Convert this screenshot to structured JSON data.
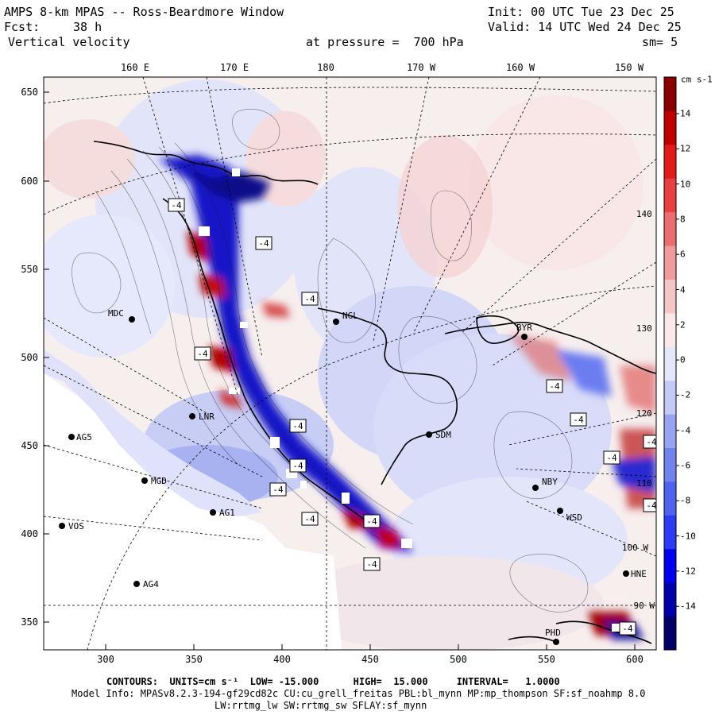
{
  "header": {
    "title": "AMPS 8-km MPAS -- Ross-Beardmore Window",
    "init": "Init: 00 UTC Tue 23 Dec 25",
    "fcst_label": "Fcst:",
    "fcst_value": "38 h",
    "valid": "Valid: 14 UTC Wed 24 Dec 25",
    "variable": "Vertical velocity",
    "pressure": "at pressure =  700 hPa",
    "smoothing": "sm= 5"
  },
  "map": {
    "longitude_labels": [
      "160 E",
      "170 E",
      "180",
      "170 W",
      "160 W",
      "150 W"
    ],
    "y_ticks": [
      "650",
      "600",
      "550",
      "500",
      "450",
      "400",
      "350"
    ],
    "x_ticks": [
      "300",
      "350",
      "400",
      "450",
      "500",
      "550",
      "600"
    ],
    "edge_labels": [
      "140 W",
      "130 W",
      "120 W",
      "110 W",
      "100 W",
      "90 W"
    ],
    "stations": [
      {
        "id": "MDC",
        "label": "MDC"
      },
      {
        "id": "NGL",
        "label": "NGL"
      },
      {
        "id": "LNR",
        "label": "LNR"
      },
      {
        "id": "AG5",
        "label": "AG5"
      },
      {
        "id": "MGD",
        "label": "MGD"
      },
      {
        "id": "AG1",
        "label": "AG1"
      },
      {
        "id": "VOS",
        "label": "VOS"
      },
      {
        "id": "AG4",
        "label": "AG4"
      },
      {
        "id": "SDM",
        "label": "SDM"
      },
      {
        "id": "NBY",
        "label": "NBY"
      },
      {
        "id": "WSD",
        "label": "WSD"
      },
      {
        "id": "PHD",
        "label": "PHD"
      },
      {
        "id": "BYR",
        "label": "BYR"
      },
      {
        "id": "HNE",
        "label": "HNE"
      }
    ],
    "contour_box_label": "-4"
  },
  "colorbar": {
    "units": "cm s-1",
    "ticks": [
      "14",
      "12",
      "10",
      "8",
      "6",
      "4",
      "2",
      "0",
      "-2",
      "-4",
      "-6",
      "-8",
      "-10",
      "-12",
      "-14"
    ],
    "colors": [
      "#000066",
      "#0000aa",
      "#0000ee",
      "#2b3cf5",
      "#4e63f0",
      "#7184ee",
      "#98a4f1",
      "#c4caf5",
      "#e4e6fa",
      "#fbe8e8",
      "#f6c6c6",
      "#f19c9c",
      "#ec6d6d",
      "#e84040",
      "#e21a1a",
      "#c00000",
      "#8a0000"
    ]
  },
  "footer": {
    "contours": "CONTOURS:  UNITS=cm s⁻¹  LOW= -15.000      HIGH=  15.000     INTERVAL=   1.0000",
    "model_info": "Model Info: MPASv8.2.3-194-gf29cd82c CU:cu_grell_freitas PBL:bl_mynn MP:mp_thompson SF:sf_noahmp 8.0",
    "physics": "LW:rrtmg_lw SW:rrtmg_sw SFLAY:sf_mynn"
  }
}
